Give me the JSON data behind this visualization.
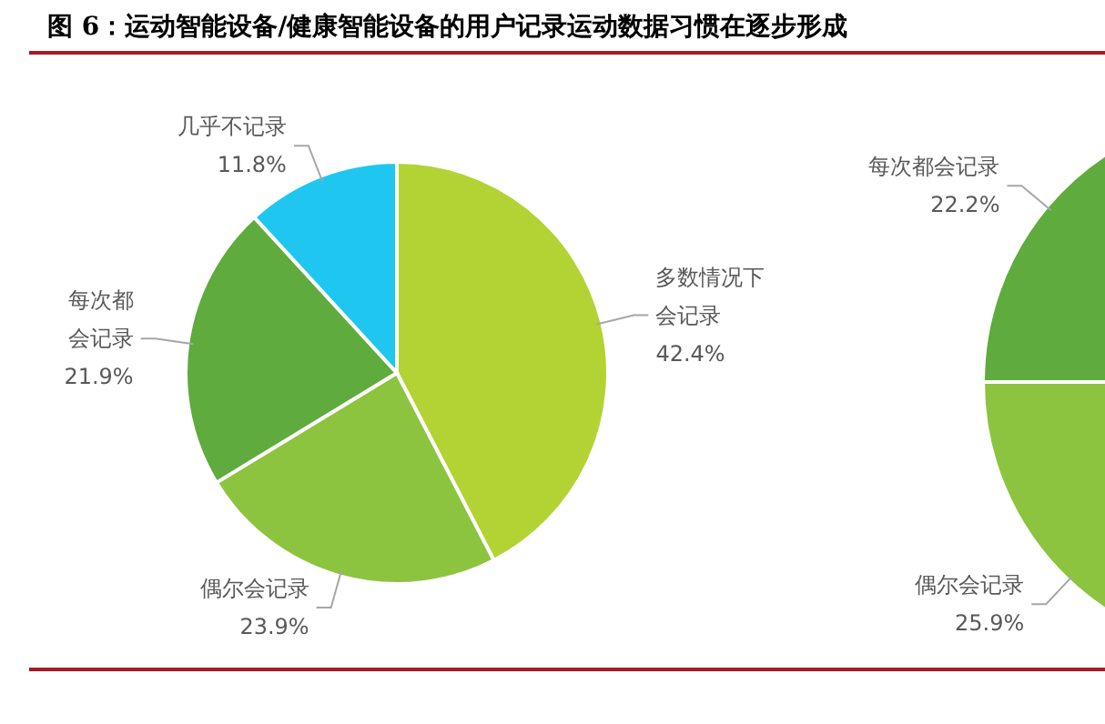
{
  "chart_data": [
    {
      "type": "pie",
      "title": "图 6：运动智能设备/健康智能设备的用户记录运动数据习惯在逐步形成",
      "categories": [
        "多数情况下会记录",
        "偶尔会记录",
        "每次都会记录",
        "几乎不记录"
      ],
      "values": [
        42.4,
        23.9,
        21.9,
        11.8
      ],
      "colors": [
        "#b3d334",
        "#8cc43f",
        "#5fab3d",
        "#1fc7f0"
      ],
      "value_labels": [
        "42.4%",
        "23.9%",
        "21.9%",
        "11.8%"
      ]
    },
    {
      "type": "pie",
      "categories": [
        "偶尔会记录",
        "每次都会记录"
      ],
      "values": [
        25.9,
        22.2
      ],
      "colors": [
        "#8cc43f",
        "#5fab3d"
      ],
      "value_labels": [
        "25.9%",
        "22.2%"
      ]
    }
  ]
}
